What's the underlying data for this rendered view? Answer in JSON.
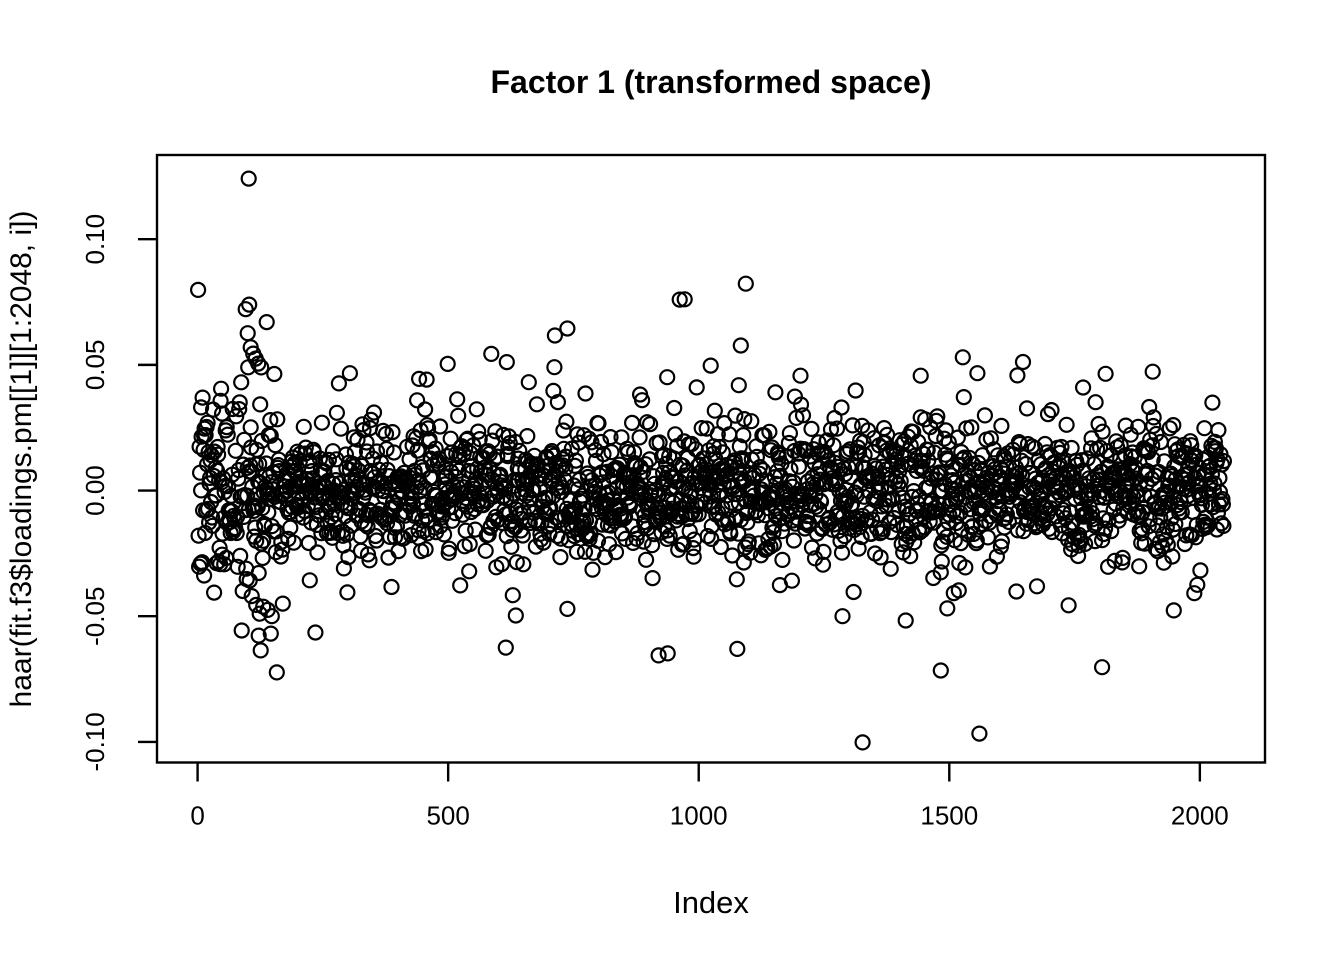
{
  "figure": {
    "background": "#ffffff",
    "foreground": "#000000"
  },
  "chart_data": {
    "type": "scatter",
    "title": "Factor 1 (transformed space)",
    "xlabel": "Index",
    "ylabel": "haar(fit.f3$loadings.pm[[1]][1:2048, i])",
    "marker": "open-circle",
    "marker_color": "#000000",
    "grid": false,
    "legend": "none",
    "n_points": 2048,
    "x_values": "index 1 to 2048",
    "xlim": [
      -81,
      2130
    ],
    "ylim": [
      -0.1082,
      0.1335
    ],
    "x_ticks": {
      "values": [
        0,
        500,
        1000,
        1500,
        2000
      ],
      "labels": [
        "0",
        "500",
        "1000",
        "1500",
        "2000"
      ]
    },
    "y_ticks": {
      "values": [
        0.1,
        0.05,
        0.0,
        -0.05,
        -0.1
      ],
      "labels": [
        "0.10",
        "0.05",
        "0.00",
        "-0.05",
        "-0.10"
      ]
    },
    "bulk_model": {
      "description": "2048 points centered on 0; dense band within +/-0.02, moderate spread to +/-0.035, larger spread for the first ~160 indices",
      "seed": 7,
      "sd_main": 0.0125,
      "sd_first_segment": 0.019,
      "first_segment_n": 160,
      "tail_prob": 0.1,
      "tail_mult": 1.8
    },
    "notable_points": [
      [
        7,
        0.0331
      ],
      [
        49,
        0.0306
      ],
      [
        102,
        0.1241
      ],
      [
        103,
        0.074
      ],
      [
        138,
        0.067
      ],
      [
        100,
        0.0626
      ],
      [
        106,
        0.057
      ],
      [
        111,
        0.0545
      ],
      [
        116,
        0.0525
      ],
      [
        121,
        0.0505
      ],
      [
        127,
        0.049
      ],
      [
        304,
        0.0467
      ],
      [
        442,
        0.0444
      ],
      [
        499,
        0.0504
      ],
      [
        617,
        0.0511
      ],
      [
        661,
        0.0431
      ],
      [
        713,
        0.0617
      ],
      [
        937,
        0.0451
      ],
      [
        1024,
        0.0497
      ],
      [
        1080,
        0.0419
      ],
      [
        1084,
        0.0577
      ],
      [
        1094,
        0.0823
      ],
      [
        1153,
        0.0391
      ],
      [
        1203,
        0.0457
      ],
      [
        1313,
        0.0398
      ],
      [
        1443,
        0.0457
      ],
      [
        1556,
        0.0467
      ],
      [
        1767,
        0.041
      ],
      [
        1906,
        0.0473
      ],
      [
        13,
        -0.0338
      ],
      [
        108,
        -0.042
      ],
      [
        117,
        -0.0455
      ],
      [
        124,
        -0.049
      ],
      [
        131,
        -0.0462
      ],
      [
        140,
        -0.0475
      ],
      [
        148,
        -0.05
      ],
      [
        122,
        -0.0577
      ],
      [
        146,
        -0.0569
      ],
      [
        126,
        -0.0636
      ],
      [
        615,
        -0.0625
      ],
      [
        635,
        -0.0497
      ],
      [
        738,
        -0.0471
      ],
      [
        920,
        -0.0656
      ],
      [
        938,
        -0.0648
      ],
      [
        1077,
        -0.063
      ],
      [
        1287,
        -0.05
      ],
      [
        1327,
        -0.1002
      ],
      [
        1413,
        -0.0517
      ],
      [
        1483,
        -0.0716
      ],
      [
        1560,
        -0.0967
      ],
      [
        1805,
        -0.0703
      ],
      [
        1948,
        -0.0477
      ]
    ]
  }
}
